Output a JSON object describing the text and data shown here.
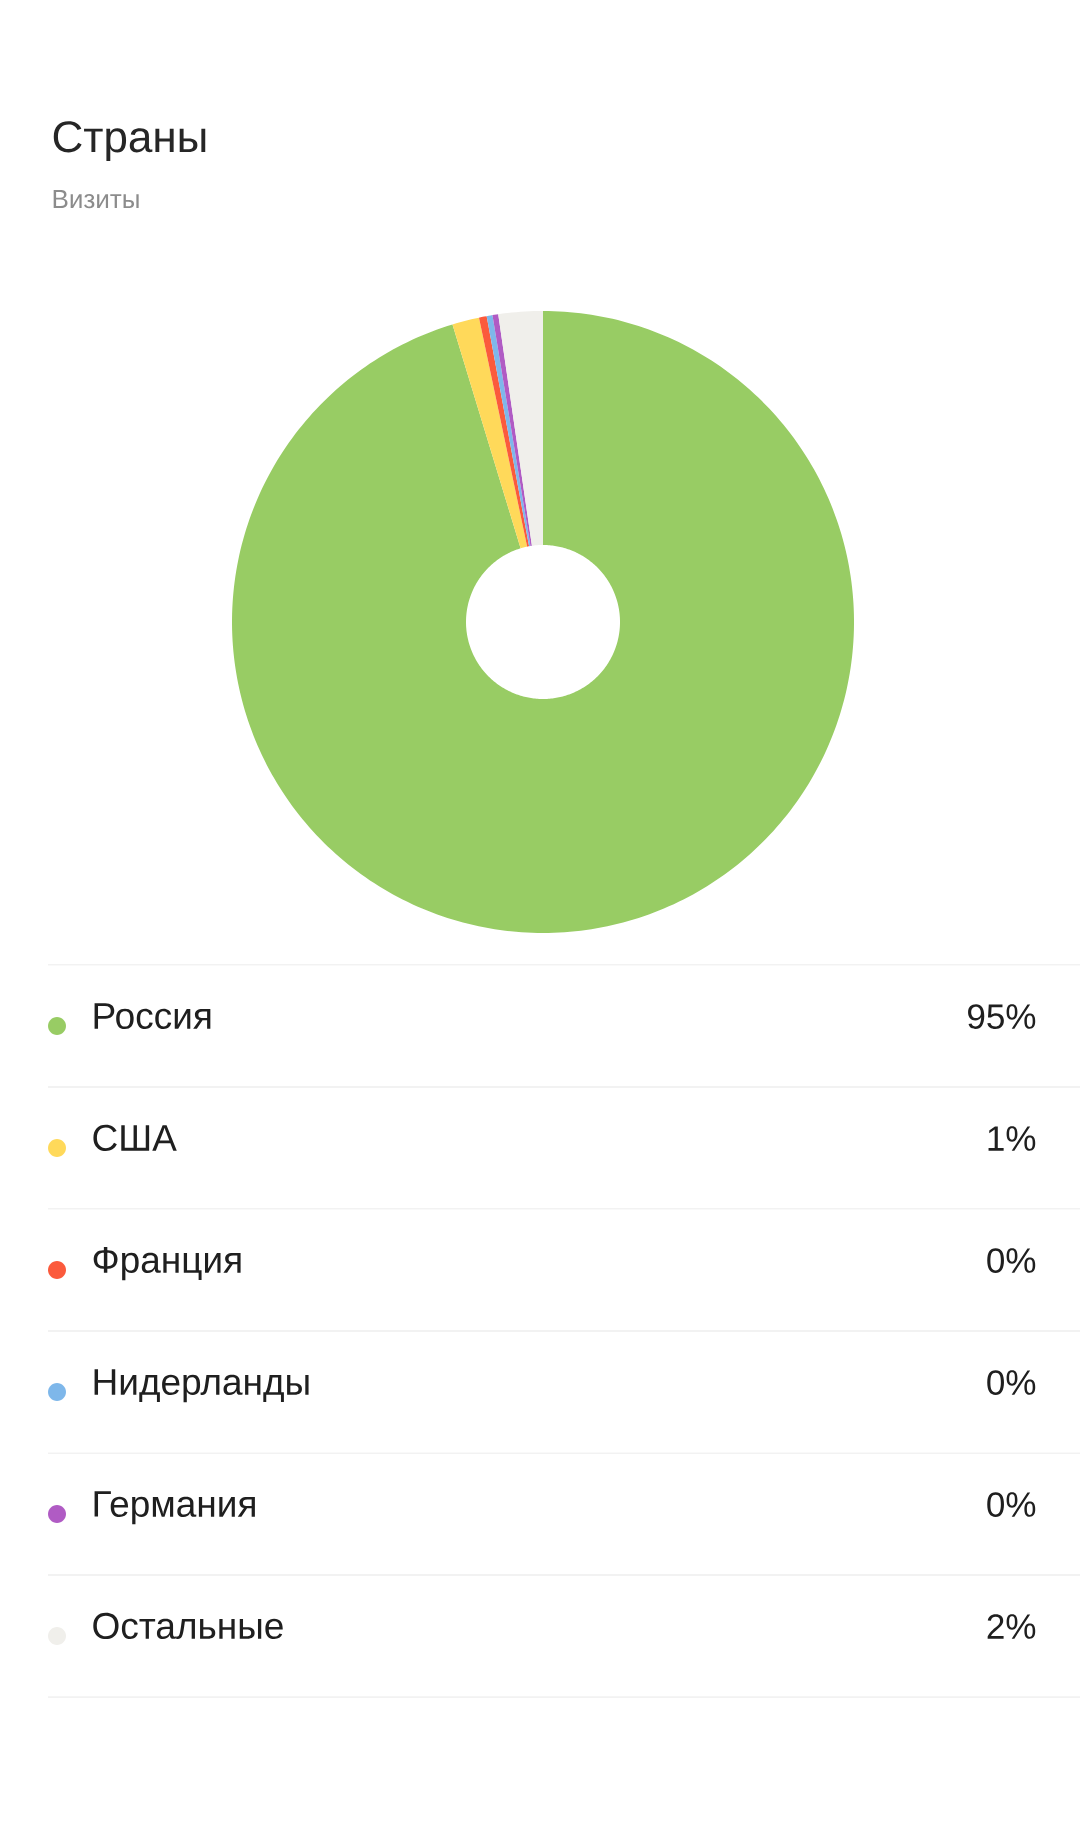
{
  "chart_data": {
    "type": "donut",
    "title": "Страны",
    "subtitle": "Визиты",
    "categories": [
      "Россия",
      "США",
      "Франция",
      "Нидерланды",
      "Германия",
      "Остальные"
    ],
    "values": [
      95.3,
      1.4,
      0.4,
      0.3,
      0.3,
      2.3
    ],
    "value_labels": [
      "95%",
      "1%",
      "0%",
      "0%",
      "0%",
      "2%"
    ],
    "colors": [
      "#98cc64",
      "#ffd95a",
      "#fb5a3c",
      "#7eb7ea",
      "#b05bc4",
      "#f0efeb"
    ],
    "legend": "bottom"
  }
}
